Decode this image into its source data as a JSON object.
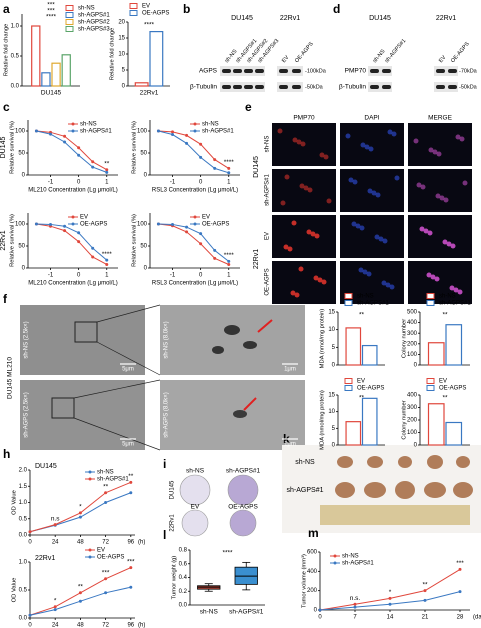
{
  "panel_labels": [
    "a",
    "b",
    "c",
    "d",
    "e",
    "f",
    "g",
    "h",
    "i",
    "j",
    "k",
    "l",
    "m"
  ],
  "blot_b": {
    "cell_lines": [
      "DU145",
      "22Rv1"
    ],
    "lanes": [
      "sh-NS",
      "sh-AGPS#1",
      "sh-AGPS#2",
      "sh-AGPS#3",
      "EV",
      "OE-AGPS"
    ],
    "rows": [
      "AGPS",
      "β-Tubulin"
    ],
    "markers": [
      "-100kDa",
      "-50kDa"
    ]
  },
  "blot_d": {
    "cell_lines": [
      "DU145",
      "22Rv1"
    ],
    "lanes": [
      "sh-NS",
      "sh-AGPS#1",
      "EV",
      "OE-AGPS"
    ],
    "rows": [
      "PMP70",
      "β-Tubulin"
    ],
    "markers": [
      "-70kDa",
      "-50kDa"
    ]
  },
  "panel_e": {
    "columns": [
      "PMP70",
      "DAPI",
      "MERGE"
    ],
    "rows": [
      "sh-NS",
      "sh-AGPS#1",
      "EV",
      "OE-AGPS"
    ],
    "cell_lines": [
      "DU145",
      "22Rv1"
    ]
  },
  "panel_f": {
    "side_label": "DU145 ML210",
    "images": [
      "sh-NS (2.5k×)",
      "sh-NS (8.0k×)",
      "sh-AGPS (2.5k×)",
      "sh-AGPS (8.0k×)"
    ],
    "scale_bars": [
      "5μm",
      "1μm",
      "5μm",
      "1μm"
    ]
  },
  "panel_i": {
    "rows": [
      {
        "cell_line": "DU145",
        "labels": [
          "sh-NS",
          "sh-AGPS#1"
        ]
      },
      {
        "cell_line": "22Rv1",
        "labels": [
          "EV",
          "OE-AGPS"
        ]
      }
    ]
  },
  "panel_k": {
    "rows": [
      "sh-NS",
      "sh-AGPS#1"
    ]
  },
  "chart_data": [
    {
      "type": "bar",
      "categories": [
        "DU145"
      ],
      "ylabel": "Relative fold change",
      "ylim": [
        0,
        1.2
      ],
      "yticks": [
        {
          "value": 0,
          "label": "0.0"
        },
        0.5,
        {
          "value": 1,
          "label": "1.0"
        }
      ],
      "series": [
        {
          "name": "sh-NS",
          "color": "#e0473c",
          "values": [
            1.0
          ]
        },
        {
          "name": "sh-AGPS#1",
          "color": "#3a78c2",
          "values": [
            0.22
          ]
        },
        {
          "name": "sh-AGPS#2",
          "color": "#e0a82e",
          "values": [
            0.38
          ]
        },
        {
          "name": "sh-AGPS#3",
          "color": "#5aa469",
          "values": [
            0.52
          ]
        }
      ],
      "annotations": [
        "***",
        "***",
        "****"
      ]
    },
    {
      "type": "bar",
      "categories": [
        "22Rv1"
      ],
      "ylabel": "Relative fold change",
      "ylim": [
        0,
        20
      ],
      "yticks": [
        0,
        5,
        10,
        15,
        20
      ],
      "series": [
        {
          "name": "EV",
          "color": "#e0473c",
          "values": [
            1
          ]
        },
        {
          "name": "OE-AGPS",
          "color": "#3a78c2",
          "values": [
            17
          ]
        }
      ],
      "annotations": [
        "****"
      ]
    },
    {
      "type": "line",
      "group_label": "DU145",
      "ylabel": "Relative survival (%)",
      "xlabel": "ML210 Concentration (Lg μmol/L)",
      "x": [
        -1.5,
        -1,
        -0.5,
        0,
        0.5,
        1
      ],
      "xlim": [
        -1.8,
        1.4
      ],
      "xticks": [
        -1,
        0,
        1
      ],
      "ylim": [
        0,
        125
      ],
      "yticks": [
        0,
        50,
        100
      ],
      "series": [
        {
          "name": "sh-NS",
          "color": "#e0473c",
          "values": [
            100,
            97,
            88,
            62,
            30,
            12
          ]
        },
        {
          "name": "sh-AGPS#1",
          "color": "#3a78c2",
          "values": [
            100,
            93,
            75,
            45,
            18,
            6
          ]
        }
      ],
      "annotations": [
        "**"
      ]
    },
    {
      "type": "line",
      "ylabel": "Relative survival (%)",
      "xlabel": "RSL3 Concentration (Lg μmol/L)",
      "x": [
        -1.5,
        -1,
        -0.5,
        0,
        0.5,
        1
      ],
      "xlim": [
        -1.8,
        1.4
      ],
      "xticks": [
        -1,
        0,
        1
      ],
      "ylim": [
        0,
        125
      ],
      "yticks": [
        0,
        50,
        100
      ],
      "series": [
        {
          "name": "sh-NS",
          "color": "#e0473c",
          "values": [
            100,
            98,
            90,
            70,
            35,
            15
          ]
        },
        {
          "name": "sh-AGPS#1",
          "color": "#3a78c2",
          "values": [
            100,
            92,
            72,
            40,
            15,
            5
          ]
        }
      ],
      "annotations": [
        "****"
      ]
    },
    {
      "type": "line",
      "group_label": "22Rv1",
      "ylabel": "Relative survival (%)",
      "xlabel": "ML210 Concentration (Lg μmol/L)",
      "x": [
        -1.5,
        -1,
        -0.5,
        0,
        0.5,
        1
      ],
      "xlim": [
        -1.8,
        1.4
      ],
      "xticks": [
        -1,
        0,
        1
      ],
      "ylim": [
        0,
        125
      ],
      "yticks": [
        0,
        50,
        100
      ],
      "series": [
        {
          "name": "EV",
          "color": "#e0473c",
          "values": [
            100,
            95,
            85,
            60,
            25,
            8
          ]
        },
        {
          "name": "OE-AGPS",
          "color": "#3a78c2",
          "values": [
            100,
            99,
            95,
            80,
            45,
            18
          ]
        }
      ],
      "annotations": [
        "****"
      ]
    },
    {
      "type": "line",
      "ylabel": "Relative survival (%)",
      "xlabel": "RSL3 Concentration (Lg μmol/L)",
      "x": [
        -1.5,
        -1,
        -0.5,
        0,
        0.5,
        1
      ],
      "xlim": [
        -1.8,
        1.4
      ],
      "xticks": [
        -1,
        0,
        1
      ],
      "ylim": [
        0,
        125
      ],
      "yticks": [
        0,
        50,
        100
      ],
      "series": [
        {
          "name": "EV",
          "color": "#e0473c",
          "values": [
            100,
            96,
            82,
            55,
            22,
            8
          ]
        },
        {
          "name": "OE-AGPS",
          "color": "#3a78c2",
          "values": [
            100,
            99,
            93,
            78,
            40,
            15
          ]
        }
      ],
      "annotations": [
        "****"
      ]
    },
    {
      "type": "bar",
      "categories": [
        null
      ],
      "ylabel": "MDA (nmol/mg protein)",
      "ylim": [
        0,
        15
      ],
      "yticks": [
        0,
        5,
        10,
        15
      ],
      "series": [
        {
          "name": "sh-NS",
          "color": "#e0473c",
          "values": [
            10.5
          ]
        },
        {
          "name": "sh-AGPS#1",
          "color": "#3a78c2",
          "values": [
            5.5
          ]
        }
      ],
      "annotations": [
        "**"
      ]
    },
    {
      "type": "bar",
      "categories": [
        null
      ],
      "ylabel": "Colony number",
      "ylim": [
        0,
        500
      ],
      "yticks": [
        0,
        100,
        200,
        300,
        400,
        500
      ],
      "series": [
        {
          "name": "sh-NS",
          "color": "#e0473c",
          "values": [
            210
          ]
        },
        {
          "name": "sh-AGPS#1",
          "color": "#3a78c2",
          "values": [
            380
          ]
        }
      ],
      "annotations": [
        "**"
      ]
    },
    {
      "type": "bar",
      "categories": [
        null
      ],
      "ylabel": "MDA (nmol/mg protein)",
      "ylim": [
        0,
        15
      ],
      "yticks": [
        0,
        5,
        10,
        15
      ],
      "series": [
        {
          "name": "EV",
          "color": "#e0473c",
          "values": [
            7
          ]
        },
        {
          "name": "OE-AGPS",
          "color": "#3a78c2",
          "values": [
            14
          ]
        }
      ],
      "annotations": [
        "**"
      ]
    },
    {
      "type": "bar",
      "categories": [
        null
      ],
      "ylabel": "Colony number",
      "ylim": [
        0,
        400
      ],
      "yticks": [
        0,
        100,
        200,
        300,
        400
      ],
      "series": [
        {
          "name": "EV",
          "color": "#e0473c",
          "values": [
            330
          ]
        },
        {
          "name": "OE-AGPS",
          "color": "#3a78c2",
          "values": [
            180
          ]
        }
      ],
      "annotations": [
        "**"
      ]
    },
    {
      "type": "line",
      "title": "DU145",
      "ylabel": "OD Value",
      "xlabel": "(h)",
      "x": [
        0,
        24,
        48,
        72,
        96
      ],
      "xlim": [
        0,
        100
      ],
      "xticks": [
        0,
        24,
        48,
        72,
        96
      ],
      "ylim": [
        0,
        2
      ],
      "yticks": [
        {
          "value": 0,
          "label": "0.0"
        },
        0.5,
        {
          "value": 1,
          "label": "1.0"
        },
        1.5,
        {
          "value": 2,
          "label": "2.0"
        }
      ],
      "series": [
        {
          "name": "sh-NS",
          "color": "#3a78c2",
          "values": [
            0.1,
            0.3,
            0.55,
            1.0,
            1.3
          ]
        },
        {
          "name": "sh-AGPS#1",
          "color": "#e0473c",
          "values": [
            0.1,
            0.32,
            0.68,
            1.3,
            1.62
          ]
        }
      ],
      "annotations": [
        "n.s",
        "*",
        "**",
        "**"
      ]
    },
    {
      "type": "line",
      "title": "22Rv1",
      "ylabel": "OD Value",
      "xlabel": "(h)",
      "x": [
        0,
        24,
        48,
        72,
        96
      ],
      "xlim": [
        0,
        100
      ],
      "xticks": [
        0,
        24,
        48,
        72,
        96
      ],
      "ylim": [
        0,
        1
      ],
      "yticks": [
        {
          "value": 0,
          "label": "0.0"
        },
        0.5,
        {
          "value": 1,
          "label": "1.0"
        }
      ],
      "series": [
        {
          "name": "EV",
          "color": "#e0473c",
          "values": [
            0.05,
            0.2,
            0.45,
            0.7,
            0.9
          ]
        },
        {
          "name": "OE-AGPS",
          "color": "#3a78c2",
          "values": [
            0.05,
            0.15,
            0.3,
            0.45,
            0.55
          ]
        }
      ],
      "annotations": [
        "*",
        "**",
        "***",
        "***"
      ]
    },
    {
      "type": "box",
      "categories": [
        "sh-NS",
        "sh-AGPS#1"
      ],
      "ylabel": "Tumor weight (g)",
      "ylim": [
        0,
        0.8
      ],
      "yticks": [
        {
          "value": 0,
          "label": "0.0"
        },
        0.2,
        0.4,
        0.6,
        0.8
      ],
      "boxes": [
        {
          "min": 0.2,
          "q1": 0.23,
          "median": 0.26,
          "q3": 0.28,
          "max": 0.31,
          "color": "#b5483a"
        },
        {
          "min": 0.22,
          "q1": 0.3,
          "median": 0.42,
          "q3": 0.55,
          "max": 0.62,
          "color": "#3a8fd0"
        }
      ],
      "annotations": [
        "****"
      ]
    },
    {
      "type": "line",
      "ylabel": "Tumor volume (mm³)",
      "xlabel": "(days)",
      "x": [
        0,
        7,
        14,
        21,
        28
      ],
      "xlim": [
        0,
        30
      ],
      "xticks": [
        0,
        7,
        14,
        21,
        28
      ],
      "ylim": [
        0,
        600
      ],
      "yticks": [
        0,
        200,
        400,
        600
      ],
      "series": [
        {
          "name": "sh-NS",
          "color": "#e0473c",
          "values": [
            0,
            60,
            120,
            200,
            420
          ]
        },
        {
          "name": "sh-AGPS#1",
          "color": "#3a78c2",
          "values": [
            0,
            30,
            60,
            100,
            190
          ]
        }
      ],
      "annotations": [
        "n.s.",
        "*",
        "**",
        "***"
      ]
    }
  ]
}
